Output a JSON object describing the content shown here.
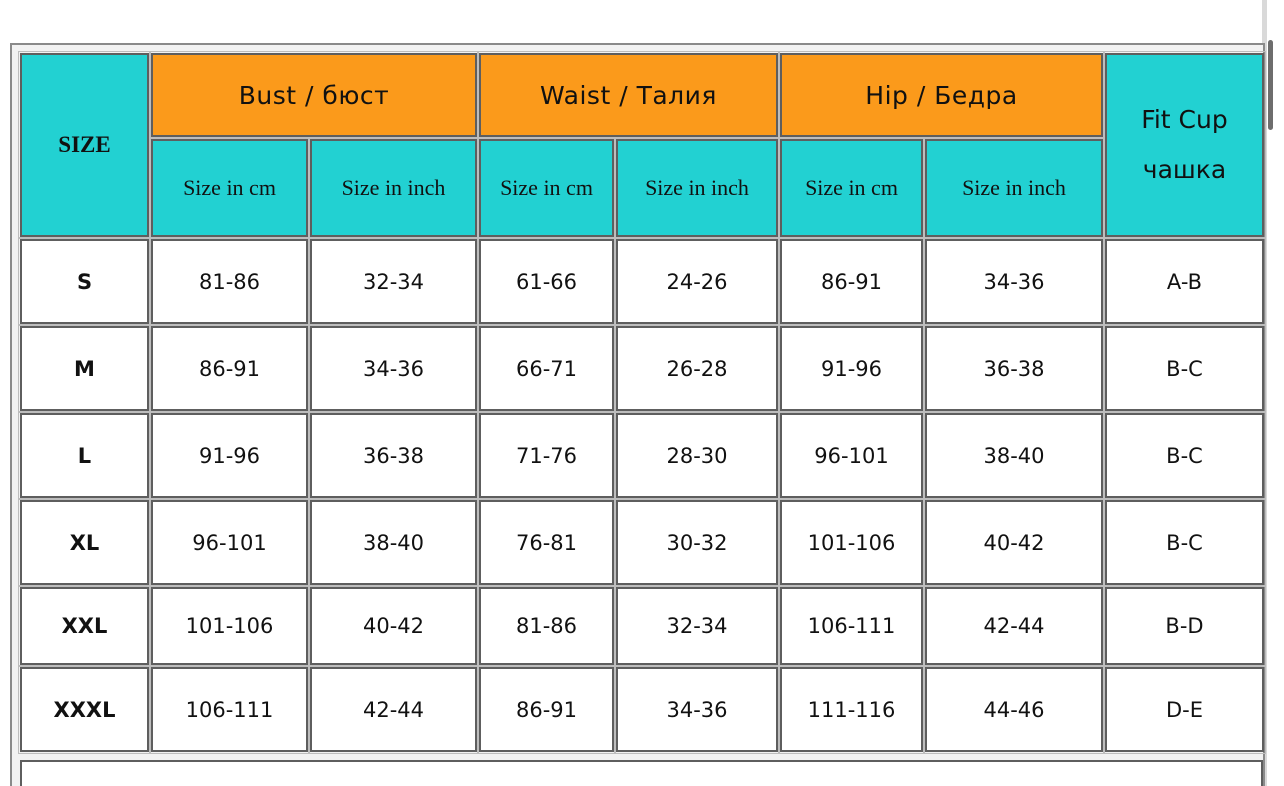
{
  "header": {
    "size_label": "SIZE",
    "groups": [
      {
        "label": "Bust / бюст"
      },
      {
        "label": "Waist / Талия"
      },
      {
        "label": "Hip / Бедра"
      }
    ],
    "fit_cup": {
      "line1": "Fit Cup",
      "line2": "чашка"
    },
    "subheaders": [
      "Size in cm",
      "Size in inch",
      "Size in cm",
      "Size in inch",
      "Size in cm",
      "Size in inch"
    ]
  },
  "rows": [
    {
      "size": "S",
      "cells": [
        "81-86",
        "32-34",
        "61-66",
        "24-26",
        "86-91",
        "34-36",
        "A-B"
      ]
    },
    {
      "size": "M",
      "cells": [
        "86-91",
        "34-36",
        "66-71",
        "26-28",
        "91-96",
        "36-38",
        "B-C"
      ]
    },
    {
      "size": "L",
      "cells": [
        "91-96",
        "36-38",
        "71-76",
        "28-30",
        "96-101",
        "38-40",
        "B-C"
      ]
    },
    {
      "size": "XL",
      "cells": [
        "96-101",
        "38-40",
        "76-81",
        "30-32",
        "101-106",
        "40-42",
        "B-C"
      ]
    },
    {
      "size": "XXL",
      "cells": [
        "101-106",
        "40-42",
        "81-86",
        "32-34",
        "106-111",
        "42-44",
        "B-D"
      ]
    },
    {
      "size": "XXXL",
      "cells": [
        "106-111",
        "42-44",
        "86-91",
        "34-36",
        "111-116",
        "44-46",
        "D-E"
      ]
    }
  ],
  "colors": {
    "header_teal": "#22d1d2",
    "header_orange": "#fb9a1b",
    "cell_white": "#ffffff"
  }
}
